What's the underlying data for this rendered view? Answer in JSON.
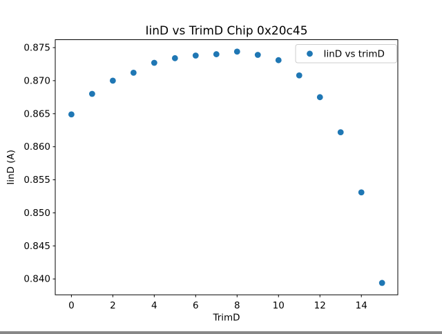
{
  "window": {
    "background": "#ffffff"
  },
  "chart_data": {
    "type": "scatter",
    "title": "IinD vs TrimD Chip 0x20c45",
    "xlabel": "TrimD",
    "ylabel": "IinD (A)",
    "legend": {
      "label": "IinD vs trimD",
      "position": "upper right",
      "marker": "circle-icon"
    },
    "x": [
      0,
      1,
      2,
      3,
      4,
      5,
      6,
      7,
      8,
      9,
      10,
      11,
      12,
      13,
      14,
      15
    ],
    "y": [
      0.8649,
      0.868,
      0.87,
      0.8712,
      0.8727,
      0.8734,
      0.8738,
      0.874,
      0.8744,
      0.8739,
      0.8731,
      0.8708,
      0.8675,
      0.8622,
      0.8531,
      0.8394
    ],
    "xlim": [
      -0.78,
      15.76
    ],
    "ylim": [
      0.8376,
      0.8762
    ],
    "xticks": [
      0,
      2,
      4,
      6,
      8,
      10,
      12,
      14
    ],
    "yticks": [
      0.875,
      0.87,
      0.865,
      0.86,
      0.855,
      0.85,
      0.845,
      0.84
    ],
    "ytick_decimals": 3,
    "grid": false,
    "marker_color": "#1f77b4",
    "marker_radius_px": 4.4,
    "spine_color": "#000000",
    "legend_border_color": "#cccccc",
    "legend_background": "#ffffff"
  }
}
